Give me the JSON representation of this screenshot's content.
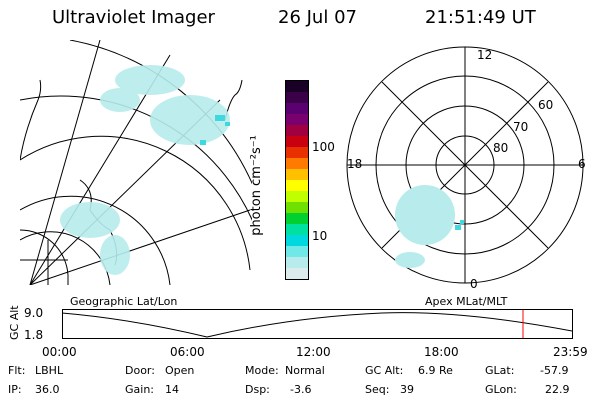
{
  "header": {
    "instrument": "Ultraviolet Imager",
    "date": "26 Jul 07",
    "time": "21:51:49 UT"
  },
  "geo_panel": {
    "caption": "Geographic Lat/Lon"
  },
  "colorbar": {
    "unit_label": "photon cm⁻²s⁻¹",
    "ticks": [
      "100",
      "10"
    ],
    "colors": [
      "#1a0026",
      "#3a0048",
      "#5a0070",
      "#7a0070",
      "#a00040",
      "#c80010",
      "#e83000",
      "#ff7a00",
      "#ffc000",
      "#ffff00",
      "#c0ff00",
      "#70e000",
      "#00d030",
      "#00e0a0",
      "#00d8e0",
      "#70e8e8",
      "#b8ecec",
      "#dcecec"
    ]
  },
  "polar_panel": {
    "caption": "Apex MLat/MLT",
    "lat_labels": [
      "80",
      "70",
      "60"
    ],
    "mlt_labels": {
      "top": "12",
      "left": "18",
      "right": "6",
      "bottom": "0"
    }
  },
  "timeline": {
    "axis_title": "GC Alt",
    "y_ticks": [
      "9.0",
      "1.8"
    ],
    "x_ticks": [
      "00:00",
      "06:00",
      "12:00",
      "18:00",
      "23:59"
    ],
    "current_marker_color": "#ff0000"
  },
  "status": {
    "row1": [
      {
        "key": "Flt:",
        "value": "LBHL"
      },
      {
        "key": "Door:",
        "value": "Open"
      },
      {
        "key": "Mode:",
        "value": "Normal"
      },
      {
        "key": "GC Alt:",
        "value": "6.9 Re"
      },
      {
        "key": "GLat:",
        "value": "-57.9"
      }
    ],
    "row2": [
      {
        "key": "IP:",
        "value": "36.0"
      },
      {
        "key": "Gain:",
        "value": "14"
      },
      {
        "key": "Dsp:",
        "value": "-3.6"
      },
      {
        "key": "Seq:",
        "value": "39"
      },
      {
        "key": "GLon:",
        "value": "22.9"
      }
    ]
  }
}
